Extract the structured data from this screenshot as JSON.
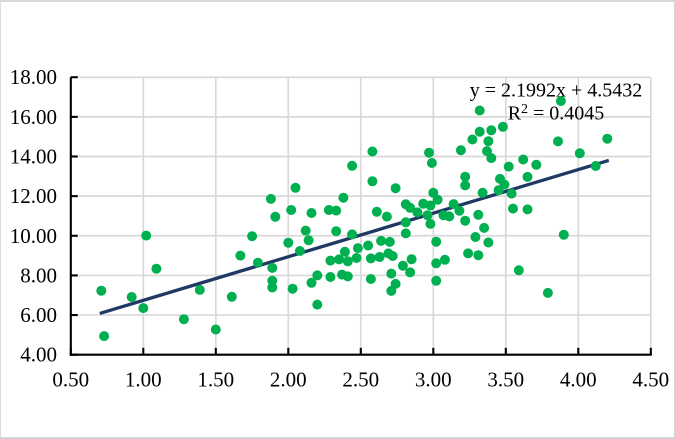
{
  "chart_data": {
    "type": "scatter",
    "title": "",
    "xlabel": "",
    "ylabel": "",
    "grid": true,
    "legend": "none",
    "x_range": [
      0.5,
      4.5
    ],
    "y_range": [
      4,
      18
    ],
    "x_tick_labels": [
      "0.50",
      "1.00",
      "1.50",
      "2.00",
      "2.50",
      "3.00",
      "3.50",
      "4.00",
      "4.50"
    ],
    "y_tick_labels": [
      "4.00",
      "6.00",
      "8.00",
      "10.00",
      "12.00",
      "14.00",
      "16.00",
      "18.00"
    ],
    "x_tick_values": [
      0.5,
      1.0,
      1.5,
      2.0,
      2.5,
      3.0,
      3.5,
      4.0,
      4.5
    ],
    "y_tick_values": [
      4,
      6,
      8,
      10,
      12,
      14,
      16,
      18
    ],
    "marker_color": "#00B050",
    "gridline_color": "#d9d9d9",
    "axis_color": "#000000",
    "trendline": {
      "color": "#1f3864",
      "slope": 2.1992,
      "intercept": 4.5432,
      "x_start": 0.7,
      "x_end": 4.21
    },
    "equation": {
      "line1": "y = 2.1992x + 4.5432",
      "r2_base": "R",
      "r2_sup": "2",
      "r2_rest": " = 0.4045"
    },
    "points": [
      [
        0.71,
        7.23
      ],
      [
        0.73,
        4.94
      ],
      [
        0.92,
        6.91
      ],
      [
        1.0,
        6.35
      ],
      [
        1.02,
        10.01
      ],
      [
        1.09,
        8.34
      ],
      [
        1.28,
        5.79
      ],
      [
        1.39,
        7.27
      ],
      [
        1.5,
        5.27
      ],
      [
        1.61,
        6.92
      ],
      [
        1.67,
        9.0
      ],
      [
        1.75,
        9.98
      ],
      [
        1.79,
        8.64
      ],
      [
        1.88,
        11.86
      ],
      [
        1.89,
        8.38
      ],
      [
        1.89,
        7.73
      ],
      [
        1.89,
        7.39
      ],
      [
        1.91,
        10.96
      ],
      [
        2.0,
        9.65
      ],
      [
        2.02,
        11.3
      ],
      [
        2.03,
        7.33
      ],
      [
        2.05,
        12.42
      ],
      [
        2.08,
        9.23
      ],
      [
        2.12,
        10.26
      ],
      [
        2.14,
        9.77
      ],
      [
        2.16,
        11.15
      ],
      [
        2.16,
        7.63
      ],
      [
        2.2,
        8.0
      ],
      [
        2.2,
        6.53
      ],
      [
        2.28,
        11.3
      ],
      [
        2.29,
        8.75
      ],
      [
        2.29,
        7.92
      ],
      [
        2.33,
        11.27
      ],
      [
        2.33,
        10.23
      ],
      [
        2.35,
        8.81
      ],
      [
        2.37,
        8.04
      ],
      [
        2.38,
        11.92
      ],
      [
        2.39,
        9.19
      ],
      [
        2.41,
        8.71
      ],
      [
        2.41,
        7.95
      ],
      [
        2.44,
        13.53
      ],
      [
        2.44,
        10.07
      ],
      [
        2.47,
        8.88
      ],
      [
        2.48,
        9.38
      ],
      [
        2.55,
        9.51
      ],
      [
        2.57,
        8.86
      ],
      [
        2.57,
        7.82
      ],
      [
        2.58,
        14.25
      ],
      [
        2.58,
        12.75
      ],
      [
        2.61,
        11.21
      ],
      [
        2.63,
        8.93
      ],
      [
        2.64,
        9.74
      ],
      [
        2.68,
        10.97
      ],
      [
        2.69,
        9.11
      ],
      [
        2.7,
        9.69
      ],
      [
        2.71,
        8.09
      ],
      [
        2.71,
        7.22
      ],
      [
        2.72,
        8.98
      ],
      [
        2.74,
        12.4
      ],
      [
        2.74,
        7.57
      ],
      [
        2.79,
        8.49
      ],
      [
        2.81,
        11.59
      ],
      [
        2.81,
        10.68
      ],
      [
        2.81,
        10.12
      ],
      [
        2.84,
        11.41
      ],
      [
        2.84,
        8.15
      ],
      [
        2.85,
        8.82
      ],
      [
        2.89,
        11.18
      ],
      [
        2.93,
        11.62
      ],
      [
        2.96,
        11.04
      ],
      [
        2.97,
        14.19
      ],
      [
        2.98,
        11.53
      ],
      [
        2.98,
        10.6
      ],
      [
        2.99,
        13.67
      ],
      [
        3.0,
        12.17
      ],
      [
        3.02,
        9.7
      ],
      [
        3.02,
        8.61
      ],
      [
        3.02,
        7.73
      ],
      [
        3.03,
        11.82
      ],
      [
        3.08,
        8.79
      ],
      [
        3.07,
        11.04
      ],
      [
        3.11,
        10.98
      ],
      [
        3.14,
        11.6
      ],
      [
        3.18,
        11.26
      ],
      [
        3.19,
        14.32
      ],
      [
        3.22,
        12.98
      ],
      [
        3.22,
        12.54
      ],
      [
        3.22,
        10.76
      ],
      [
        3.24,
        9.11
      ],
      [
        3.27,
        14.86
      ],
      [
        3.29,
        9.94
      ],
      [
        3.31,
        11.06
      ],
      [
        3.31,
        9.02
      ],
      [
        3.32,
        16.32
      ],
      [
        3.32,
        15.25
      ],
      [
        3.34,
        12.17
      ],
      [
        3.35,
        10.4
      ],
      [
        3.37,
        14.27
      ],
      [
        3.38,
        14.77
      ],
      [
        3.38,
        9.66
      ],
      [
        3.4,
        15.32
      ],
      [
        3.4,
        13.92
      ],
      [
        3.45,
        12.3
      ],
      [
        3.46,
        12.87
      ],
      [
        3.48,
        15.5
      ],
      [
        3.49,
        12.58
      ],
      [
        3.52,
        13.49
      ],
      [
        3.54,
        12.13
      ],
      [
        3.55,
        11.37
      ],
      [
        3.59,
        8.26
      ],
      [
        3.62,
        13.85
      ],
      [
        3.65,
        12.97
      ],
      [
        3.65,
        11.33
      ],
      [
        3.71,
        13.58
      ],
      [
        3.79,
        7.12
      ],
      [
        3.86,
        14.76
      ],
      [
        3.88,
        16.8
      ],
      [
        3.9,
        10.05
      ],
      [
        4.01,
        14.16
      ],
      [
        4.12,
        13.52
      ],
      [
        4.2,
        14.9
      ]
    ]
  }
}
